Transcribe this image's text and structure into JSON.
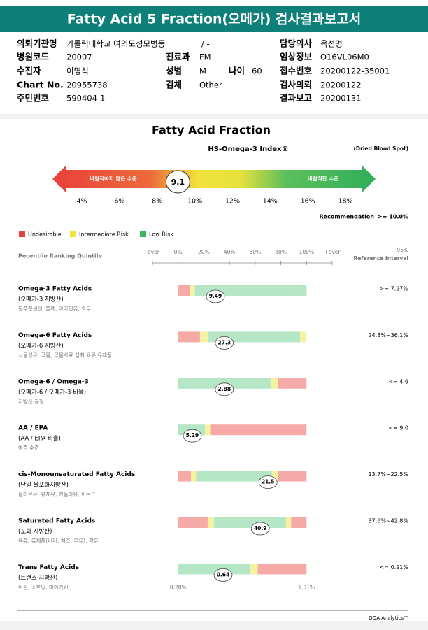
{
  "header": {
    "title": "Fatty Acid 5 Fraction(오메가) 검사결과보고서"
  },
  "info": {
    "fields": [
      {
        "label": "의뢰기관명",
        "value": "가톨릭대학교 여의도성모병동"
      },
      {
        "value": "/ -"
      },
      {
        "label": "담당의사",
        "value": "옥선명"
      },
      {
        "label": "병원코드",
        "value": "20007"
      },
      {
        "label": "진료과",
        "value": "FM"
      },
      {
        "label": "임상정보",
        "value": "O16VL06M0"
      },
      {
        "label": "수진자",
        "value": "이명식"
      },
      {
        "label": "성별",
        "value": "M"
      },
      {
        "label": "나이",
        "value": "60"
      },
      {
        "label": "접수번호",
        "value": "20200122-35001"
      },
      {
        "label": "Chart No.",
        "value": "20955738"
      },
      {
        "label": "검체",
        "value": "Other"
      },
      {
        "label": "검사의뢰",
        "value": "20200122"
      },
      {
        "label": "주민번호",
        "value": "590404-1"
      },
      {
        "label": "결과보고",
        "value": "20200131"
      }
    ]
  },
  "report": {
    "title": "Fatty Acid Fraction",
    "index": {
      "title": "HS-Omega-3 Index®",
      "sample": "(Dried Blood Spot)",
      "bad_label": "바람직하지 않은 수준",
      "good_label": "바람직한 수준",
      "value": 9.1,
      "ticks": [
        {
          "value": 4,
          "label": "4%"
        },
        {
          "value": 6,
          "label": "6%"
        },
        {
          "value": 8,
          "label": "8%"
        },
        {
          "value": 10,
          "label": "10%"
        },
        {
          "value": 12,
          "label": "12%"
        },
        {
          "value": 14,
          "label": "14%"
        },
        {
          "value": 16,
          "label": "16%"
        },
        {
          "value": 18,
          "label": "18%"
        }
      ],
      "recommendation_label": "Recommendation",
      "recommendation": ">= 10.0%"
    },
    "legend": [
      {
        "name": "Undesirable",
        "color": "#e8403a"
      },
      {
        "name": "Intermediate Risk",
        "color": "#f2e23c"
      },
      {
        "name": "Low Risk",
        "color": "#3bb55a"
      }
    ],
    "quintile_title": "Pecentile Ranking Quintile",
    "quintile_ticks": [
      "-over",
      {
        "value": 0,
        "label": "0%"
      },
      {
        "value": 20,
        "label": "20%"
      },
      {
        "value": 40,
        "label": "40%"
      },
      {
        "value": 60,
        "label": "60%"
      },
      {
        "value": 80,
        "label": "80%"
      },
      {
        "value": 100,
        "label": "100%"
      },
      "+over"
    ],
    "reference_header": [
      "95%",
      "Reference Interval"
    ],
    "zone_colors": {
      "red": "#f6aaa8",
      "yellow": "#f5f2a2",
      "green": "#b5e6c6"
    },
    "rows": [
      {
        "name": "Omega-3 Fatty Acids",
        "korean": "(오메가-3 지방산)",
        "foods": "등푸른생선, 들깨, 아마인유, 호두",
        "value": 9.49,
        "percentile": 29,
        "reference": ">= 7.27%",
        "segments": [
          {
            "from": 0,
            "to": 9,
            "zone": "red"
          },
          {
            "from": 9,
            "to": 13,
            "zone": "yellow"
          },
          {
            "from": 13,
            "to": 100,
            "zone": "green"
          }
        ]
      },
      {
        "name": "Omega-6 Fatty Acids",
        "korean": "(오메가-6 지방산)",
        "foods": "식물성유, 곡물, 곡물사료 섭취 육류·유제품",
        "value": 27.3,
        "percentile": 36,
        "reference": "24.8%~36.1%",
        "segments": [
          {
            "from": 0,
            "to": 17,
            "zone": "red"
          },
          {
            "from": 17,
            "to": 23,
            "zone": "yellow"
          },
          {
            "from": 23,
            "to": 95,
            "zone": "green"
          },
          {
            "from": 95,
            "to": 100,
            "zone": "yellow"
          }
        ]
      },
      {
        "name": "Omega-6 / Omega-3",
        "korean": "(오메가-6 / 오메가-3 비율)",
        "foods": "지방산 균형",
        "value": 2.88,
        "percentile": 36,
        "reference": "<= 4.6",
        "segments": [
          {
            "from": 0,
            "to": 72,
            "zone": "green"
          },
          {
            "from": 72,
            "to": 78,
            "zone": "yellow"
          },
          {
            "from": 78,
            "to": 100,
            "zone": "red"
          }
        ]
      },
      {
        "name": "AA / EPA",
        "korean": "(AA / EPA 비율)",
        "foods": "염증 수준",
        "value": 5.29,
        "percentile": 11,
        "reference": "<= 9.0",
        "segments": [
          {
            "from": 0,
            "to": 21,
            "zone": "green"
          },
          {
            "from": 21,
            "to": 25,
            "zone": "yellow"
          },
          {
            "from": 25,
            "to": 100,
            "zone": "red"
          }
        ]
      },
      {
        "name": "cis-Monounsaturated Fatty Acids",
        "korean": "(단일 불포화지방산)",
        "foods": "올리브유, 유채유, 카놀라유, 아몬드",
        "value": 21.5,
        "percentile": 70,
        "reference": "13.7%~22.5%",
        "segments": [
          {
            "from": 0,
            "to": 10,
            "zone": "red"
          },
          {
            "from": 10,
            "to": 14,
            "zone": "yellow"
          },
          {
            "from": 14,
            "to": 73,
            "zone": "green"
          },
          {
            "from": 73,
            "to": 78,
            "zone": "yellow"
          },
          {
            "from": 78,
            "to": 100,
            "zone": "red"
          }
        ]
      },
      {
        "name": "Saturated Fatty Acids",
        "korean": "(포화 지방산)",
        "foods": "육류, 유제품(버터, 치즈, 우유), 팜유",
        "value": 40.9,
        "percentile": 64,
        "reference": "37.6%~42.8%",
        "segments": [
          {
            "from": 0,
            "to": 23,
            "zone": "red"
          },
          {
            "from": 23,
            "to": 28,
            "zone": "yellow"
          },
          {
            "from": 28,
            "to": 84,
            "zone": "green"
          },
          {
            "from": 84,
            "to": 88,
            "zone": "yellow"
          },
          {
            "from": 88,
            "to": 100,
            "zone": "red"
          }
        ]
      },
      {
        "name": "Trans Fatty Acids",
        "korean": "(트랜스 지방산)",
        "foods": "튀김, 쇼트닝, 마아가린",
        "value": 0.64,
        "percentile": 35,
        "reference": "<= 0.91%",
        "segments": [
          {
            "from": 0,
            "to": 56,
            "zone": "green"
          },
          {
            "from": 56,
            "to": 62,
            "zone": "yellow"
          },
          {
            "from": 62,
            "to": 100,
            "zone": "red"
          }
        ],
        "scale_labels": [
          "0.28%",
          "1.31%"
        ]
      }
    ]
  },
  "footer": {
    "brand": "OQA Analytics™"
  }
}
